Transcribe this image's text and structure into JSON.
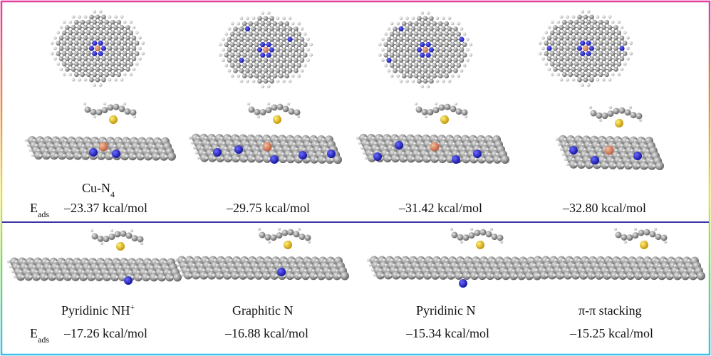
{
  "top_panel": {
    "energy_label": "E",
    "energy_label_sub": "ads",
    "label": "Cu-N",
    "label_sub": "4",
    "energies": [
      "–23.37 kcal/mol",
      "–29.75 kcal/mol",
      "–31.42  kcal/mol",
      "–32.80 kcal/mol"
    ]
  },
  "bottom_panel": {
    "energy_label": "E",
    "energy_label_sub": "ads",
    "labels": [
      {
        "text": "Pyridinic NH",
        "sup": "+"
      },
      {
        "text": "Graphitic N"
      },
      {
        "text": "Pyridinic N"
      },
      {
        "text": "π-π stacking"
      }
    ],
    "energies": [
      "–17.26 kcal/mol",
      "–16.88 kcal/mol",
      "–15.34 kcal/mol",
      "–15.25 kcal/mol"
    ]
  }
}
